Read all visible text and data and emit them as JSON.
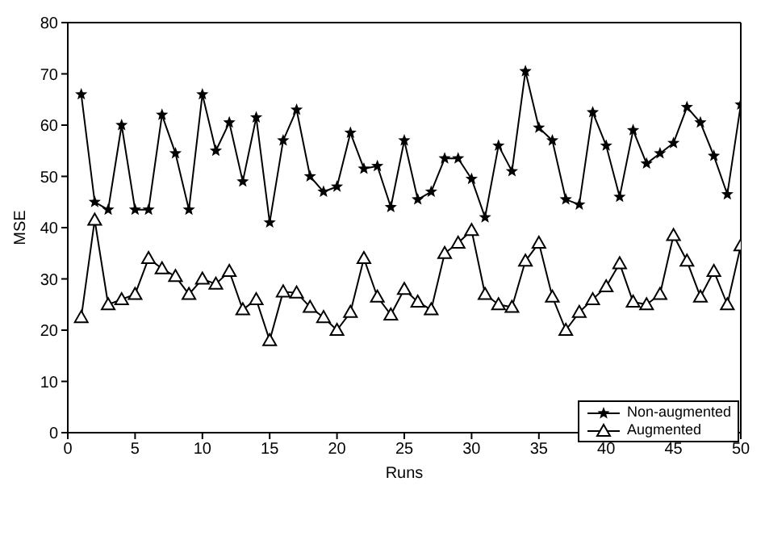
{
  "chart_data": {
    "type": "line",
    "xlabel": "Runs",
    "ylabel": "MSE",
    "x": [
      1,
      2,
      3,
      4,
      5,
      6,
      7,
      8,
      9,
      10,
      11,
      12,
      13,
      14,
      15,
      16,
      17,
      18,
      19,
      20,
      21,
      22,
      23,
      24,
      25,
      26,
      27,
      28,
      29,
      30,
      31,
      32,
      33,
      34,
      35,
      36,
      37,
      38,
      39,
      40,
      41,
      42,
      43,
      44,
      45,
      46,
      47,
      48,
      49,
      50
    ],
    "series": [
      {
        "name": "Non-augmented",
        "color": "#000000",
        "marker": "star",
        "values": [
          66,
          45,
          43.5,
          60,
          43.5,
          43.5,
          62,
          54.5,
          43.5,
          66,
          55,
          60.5,
          49,
          61.5,
          41,
          57,
          63,
          50,
          47,
          48,
          58.5,
          51.5,
          52,
          44,
          57,
          45.5,
          47,
          53.5,
          53.5,
          49.5,
          42,
          56,
          51,
          70.5,
          59.5,
          57,
          45.5,
          44.5,
          62.5,
          56,
          46,
          59,
          52.5,
          54.5,
          56.5,
          63.5,
          60.5,
          54,
          46.5,
          64
        ]
      },
      {
        "name": "Augmented",
        "color": "#000000",
        "marker": "triangle",
        "values": [
          22.5,
          41.5,
          25,
          26,
          27,
          34,
          32,
          30.5,
          27,
          30,
          29,
          31.5,
          24,
          26,
          18,
          27.5,
          27.3,
          24.5,
          22.5,
          20,
          23.5,
          34,
          26.5,
          23,
          28,
          25.5,
          24,
          35,
          37,
          39.5,
          27,
          25,
          24.5,
          33.5,
          37,
          26.5,
          20,
          23.5,
          26,
          28.5,
          33,
          25.5,
          25,
          27,
          38.5,
          33.5,
          26.5,
          31.5,
          25,
          36.5
        ]
      }
    ],
    "xlim": [
      0,
      50
    ],
    "xticks": [
      0,
      5,
      10,
      15,
      20,
      25,
      30,
      35,
      40,
      45,
      50
    ],
    "ylim": [
      0,
      80
    ],
    "yticks": [
      0,
      10,
      20,
      30,
      40,
      50,
      60,
      70,
      80
    ],
    "grid": false,
    "legend": "bottom right",
    "line_style": "solid"
  }
}
